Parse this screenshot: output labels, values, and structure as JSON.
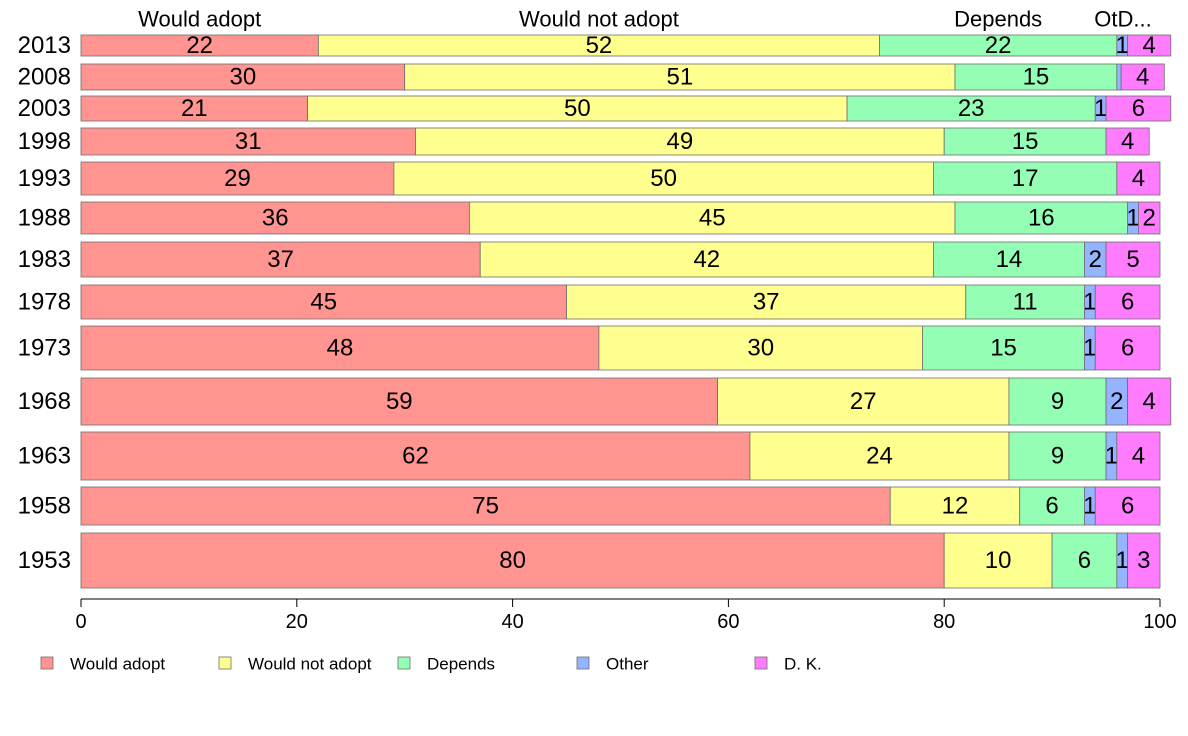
{
  "chart_data": {
    "type": "bar",
    "orientation": "horizontal",
    "stacked": true,
    "categories": [
      "2013",
      "2008",
      "2003",
      "1998",
      "1993",
      "1988",
      "1983",
      "1978",
      "1973",
      "1968",
      "1963",
      "1958",
      "1953"
    ],
    "series": [
      {
        "name": "Would adopt",
        "color": "#ff9490",
        "values": [
          22,
          30,
          21,
          31,
          29,
          36,
          37,
          45,
          48,
          59,
          62,
          75,
          80
        ]
      },
      {
        "name": "Would not adopt",
        "color": "#ffff90",
        "values": [
          52,
          51,
          50,
          49,
          50,
          45,
          42,
          37,
          30,
          27,
          24,
          12,
          10
        ]
      },
      {
        "name": "Depends",
        "color": "#94ffb4",
        "values": [
          22,
          15,
          23,
          15,
          17,
          16,
          14,
          11,
          15,
          9,
          9,
          6,
          6
        ]
      },
      {
        "name": "Other",
        "color": "#94b4ff",
        "values": [
          1,
          0.4,
          1,
          0,
          0,
          1,
          2,
          1,
          1,
          2,
          1,
          1,
          1
        ]
      },
      {
        "name": "D. K.",
        "color": "#ff7cff",
        "values": [
          4,
          4,
          6,
          4,
          4,
          2,
          5,
          6,
          6,
          4,
          4,
          6,
          3
        ]
      }
    ],
    "segment_labels": [
      [
        "22",
        "52",
        "22",
        "1",
        "4"
      ],
      [
        "30",
        "51",
        "15",
        "",
        "4"
      ],
      [
        "21",
        "50",
        "23",
        "1",
        "6"
      ],
      [
        "31",
        "49",
        "15",
        "",
        "4"
      ],
      [
        "29",
        "50",
        "17",
        "",
        "4"
      ],
      [
        "36",
        "45",
        "16",
        "1",
        "2"
      ],
      [
        "37",
        "42",
        "14",
        "2",
        "5"
      ],
      [
        "45",
        "37",
        "11",
        "1",
        "6"
      ],
      [
        "48",
        "30",
        "15",
        "1",
        "6"
      ],
      [
        "59",
        "27",
        "9",
        "2",
        "4"
      ],
      [
        "62",
        "24",
        "9",
        "1",
        "4"
      ],
      [
        "75",
        "12",
        "6",
        "1",
        "6"
      ],
      [
        "80",
        "10",
        "6",
        "1",
        "3"
      ]
    ],
    "column_headers": [
      "Would adopt",
      "Would not adopt",
      "Depends",
      "OtD..."
    ],
    "xlim": [
      0,
      100
    ],
    "xticks": [
      "0",
      "20",
      "40",
      "60",
      "80",
      "100"
    ],
    "xlabel": "",
    "ylabel": "",
    "title": "",
    "grid": false,
    "legend": {
      "placement": "bottom",
      "entries": [
        "Would adopt",
        "Would not adopt",
        "Depends",
        "Other",
        "D. K."
      ]
    }
  }
}
